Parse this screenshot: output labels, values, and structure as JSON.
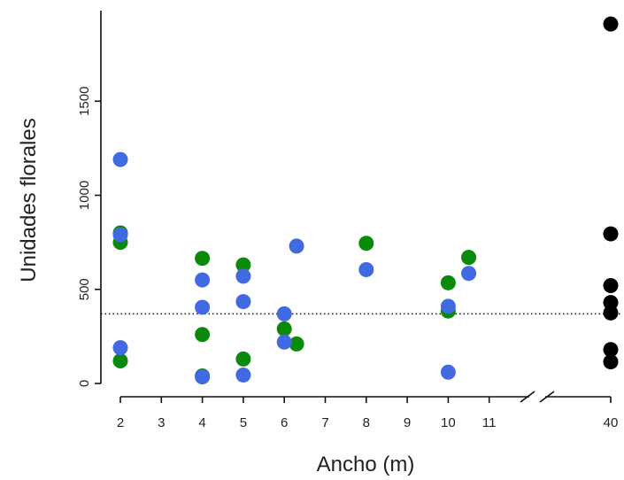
{
  "chart_data": {
    "type": "scatter",
    "title": "",
    "xlabel": "Ancho (m)",
    "ylabel": "Unidades florales",
    "x_ticks": [
      "2",
      "3",
      "4",
      "5",
      "6",
      "7",
      "8",
      "9",
      "10",
      "11",
      "40"
    ],
    "y_ticks": [
      "0",
      "500",
      "1000",
      "1500"
    ],
    "ylim": [
      0,
      1950
    ],
    "x_axis_break": "between 11 and 40",
    "reference_line": {
      "y": 370,
      "style": "dotted"
    },
    "colors": {
      "green": "#0a8a0a",
      "blue": "#4169e1",
      "black": "#000000"
    },
    "series": [
      {
        "color_key": "green",
        "points": [
          [
            2,
            800
          ],
          [
            2,
            750
          ],
          [
            2,
            120
          ],
          [
            4,
            665
          ],
          [
            4,
            260
          ],
          [
            4,
            40
          ],
          [
            5,
            630
          ],
          [
            5,
            130
          ],
          [
            6,
            290
          ],
          [
            6.3,
            210
          ],
          [
            8,
            745
          ],
          [
            10,
            535
          ],
          [
            10,
            385
          ],
          [
            10.5,
            670
          ]
        ]
      },
      {
        "color_key": "blue",
        "points": [
          [
            2,
            1190
          ],
          [
            2,
            790
          ],
          [
            2,
            190
          ],
          [
            4,
            550
          ],
          [
            4,
            405
          ],
          [
            4,
            35
          ],
          [
            5,
            570
          ],
          [
            5,
            435
          ],
          [
            5,
            45
          ],
          [
            6,
            370
          ],
          [
            6,
            220
          ],
          [
            6.3,
            730
          ],
          [
            8,
            605
          ],
          [
            10,
            410
          ],
          [
            10,
            60
          ],
          [
            10.5,
            585
          ]
        ]
      },
      {
        "color_key": "black",
        "points": [
          [
            40,
            1910
          ],
          [
            40,
            795
          ],
          [
            40,
            520
          ],
          [
            40,
            430
          ],
          [
            40,
            375
          ],
          [
            40,
            180
          ],
          [
            40,
            115
          ]
        ]
      }
    ]
  }
}
